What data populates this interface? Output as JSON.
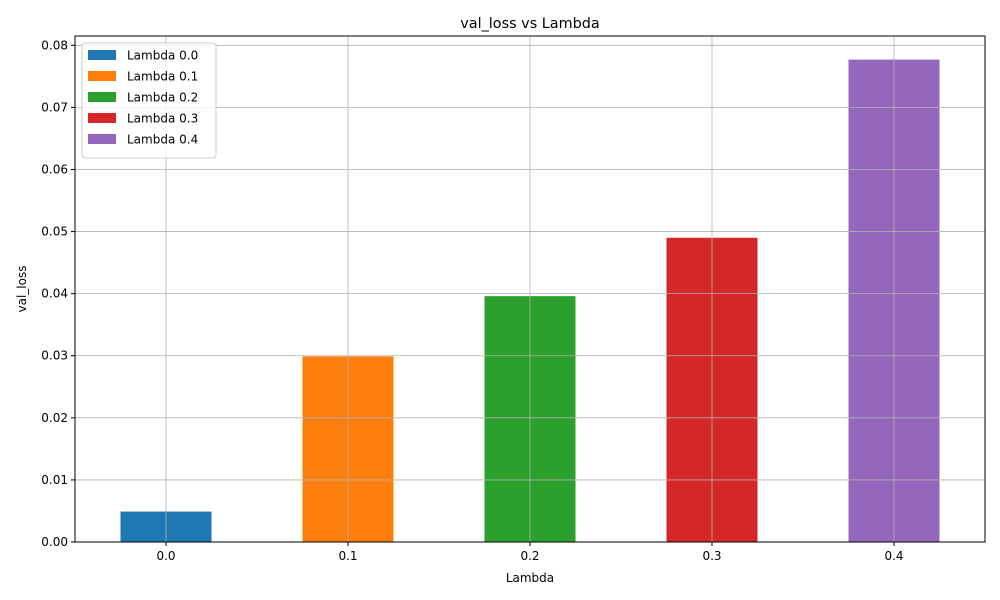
{
  "chart_data": {
    "type": "bar",
    "title": "val_loss vs Lambda",
    "xlabel": "Lambda",
    "ylabel": "val_loss",
    "categories": [
      "0.0",
      "0.1",
      "0.2",
      "0.3",
      "0.4"
    ],
    "x": [
      0.0,
      0.1,
      0.2,
      0.3,
      0.4
    ],
    "series": [
      {
        "name": "Lambda 0.0",
        "x": 0.0,
        "value": 0.0049,
        "color": "#1f77b4"
      },
      {
        "name": "Lambda 0.1",
        "x": 0.1,
        "value": 0.0299,
        "color": "#ff7f0e"
      },
      {
        "name": "Lambda 0.2",
        "x": 0.2,
        "value": 0.0396,
        "color": "#2ca02c"
      },
      {
        "name": "Lambda 0.3",
        "x": 0.3,
        "value": 0.049,
        "color": "#d62728"
      },
      {
        "name": "Lambda 0.4",
        "x": 0.4,
        "value": 0.0777,
        "color": "#9467bd"
      }
    ],
    "bar_width": 0.05,
    "xlim": [
      -0.05,
      0.45
    ],
    "ylim": [
      0,
      0.0815
    ],
    "yticks": [
      "0.00",
      "0.01",
      "0.02",
      "0.03",
      "0.04",
      "0.05",
      "0.06",
      "0.07",
      "0.08"
    ],
    "grid": true,
    "legend_position": "top-left"
  }
}
